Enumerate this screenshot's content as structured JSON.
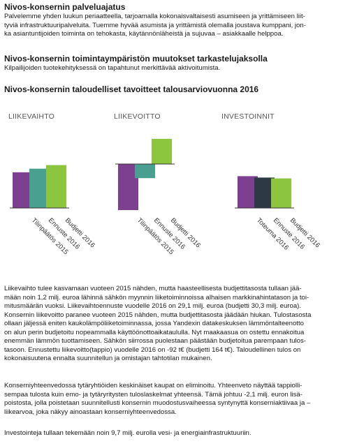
{
  "section1": {
    "heading": "Nivos-konsernin palveluajatus",
    "lines": [
      "Palvelemme yhden luukun periaatteella, tarjoamalla kokonaisvaltaisesti asumiseen ja yrittämiseen liit-",
      "tyviä infrastruktuuripalveluita. Tuemme hyvää asumista ja yrittämistä olemalla joustava kumppani, jon-",
      "ka asiantuntijoiden toiminta on tehokasta, käytännönläheistä ja sujuvaa – asiakkaalle helppoa."
    ]
  },
  "section2": {
    "heading": "Nivos-konsernin toimintaympäristön muutokset tarkastelujaksolla",
    "lines": [
      "Kilpailijoiden tuotekehityksessä on tapahtunut merkittävää aktivoitumista."
    ]
  },
  "section3": {
    "heading": "Nivos-konsernin taloudelliset tavoitteet talousarviovuonna 2016"
  },
  "colors": {
    "purple": "#7d3f8f",
    "teal": "#4aa090",
    "green": "#8cc63f",
    "dark": "#2d3a45",
    "axis": "#333333"
  },
  "chart_data": [
    {
      "type": "bar",
      "title": "LIIKEVAIHTO",
      "categories": [
        "Tilinpäätös 2015",
        "Ennuste 2016",
        "Budjetti 2016"
      ],
      "values": [
        27.9,
        29.1,
        30.3
      ],
      "colors": [
        "purple",
        "teal",
        "green"
      ]
    },
    {
      "type": "bar",
      "title": "LIIKEVOITTO",
      "categories": [
        "Tilinpäätös 2015",
        "Ennuste 2016",
        "Budjetti 2016"
      ],
      "values": [
        -300,
        -92,
        164
      ],
      "colors": [
        "purple",
        "teal",
        "green"
      ]
    },
    {
      "type": "bar",
      "title": "INVESTOINNIT",
      "categories": [
        "Toteuma 2016",
        "Ennuste 2016",
        "Budjetti 2016"
      ],
      "values": [
        10.2,
        9.7,
        9.4
      ],
      "colors": [
        "purple",
        "dark",
        "green"
      ]
    }
  ],
  "paragraphs": {
    "p3": [
      "Liikevaihto tulee kasvamaan vuoteen 2015 nähden, mutta haasteellisesta budjettitasosta tullaan jää-",
      "mään noin 1,2 milj. euroa lähinnä sähkön myynnin liiketoiminnoissa alhaisen markkinahintatason ja toi-",
      "mitusmäärän vuoksi. Liikevaihtoennuste vuodelle 2016 on 29,1 milj. euroa (budjetti 30,3 milj. euroa).",
      "Konsernin liikevoitto paranee vuoteen 2015 nähden, mutta budjettitasosta jäädään hiukan. Tulostasosta",
      "ollaan jäljessä eniten kaukolämpöliiketoiminnassa, jossa Yandexin datakeskuksen lämmöntalteenotto",
      "on alun perin budjetoitu nopeammalla käyttöönottoaikataululla. Nyt maakaasua on ostettu ennakoitua",
      "enemmän lämmön tuottamiseen. Sähkön siirrossa puolestaan päästään budjetoitua parempaan tulos-",
      "tasoon. Ennustettu liikevoitto(tappio) vuodelle 2016 on -92 t€ (budjetti 164 t€). Taloudellinen tulos on",
      "kokonaisuutena ennalta suunnitellun ja omistajan tahtotilan mukainen."
    ],
    "p4": [
      "Konserniyhteenvedossa tytäryhtiöiden keskinäiset kaupat on eliminoitu. Yhteenveto näyttää tappiolli-",
      "sempaa tulosta kuin emo- ja tytäryritysten tuloslaskelmat yhteensä. Tämä johtuu -2,1 milj. euron lisä-",
      "poistosta, jolla poistetaan suunnitellusti konsernin muodostusvaiheessa syntynyttä konserniaktiivaa ja –",
      "liikearvoa, joka näkyy ainoastaan konserniyhteenvedossa."
    ],
    "p5": [
      "Investointeja tullaan tekemään noin 9,7 milj. eurolla vesi- ja energiainfrastruktuuriin."
    ]
  }
}
